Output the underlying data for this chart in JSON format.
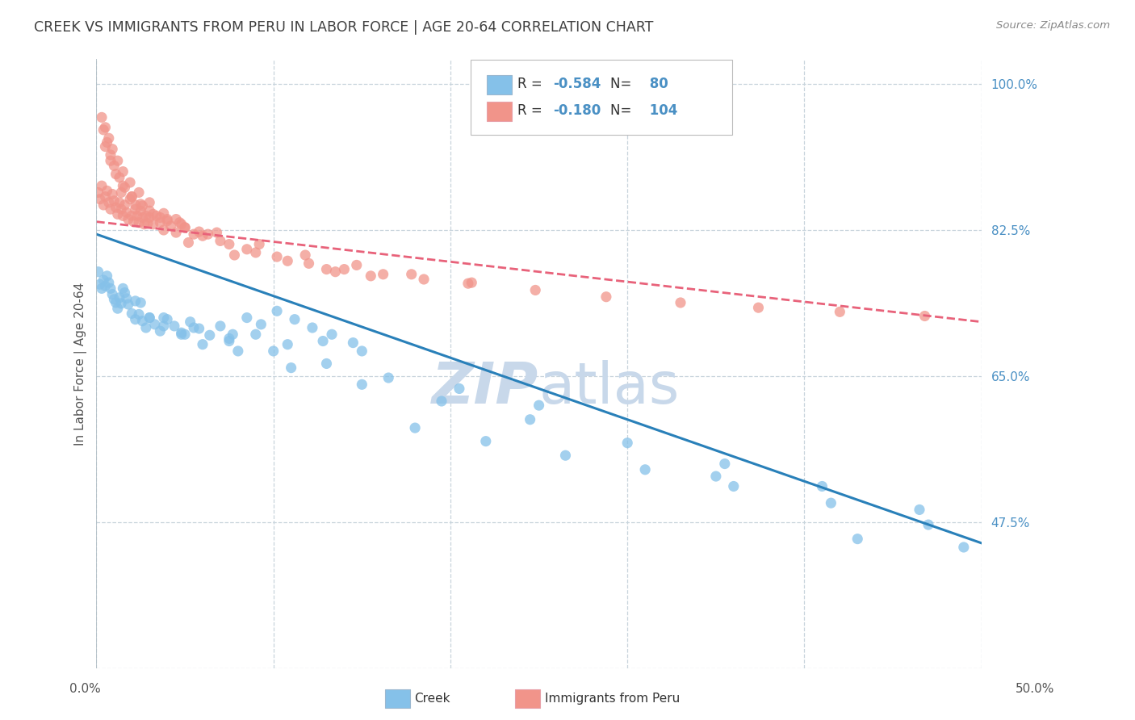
{
  "title": "CREEK VS IMMIGRANTS FROM PERU IN LABOR FORCE | AGE 20-64 CORRELATION CHART",
  "source": "Source: ZipAtlas.com",
  "ylabel": "In Labor Force | Age 20-64",
  "xlim": [
    0.0,
    0.5
  ],
  "ylim": [
    0.3,
    1.03
  ],
  "ytick_labels_right": [
    "100.0%",
    "82.5%",
    "65.0%",
    "47.5%"
  ],
  "yticks_right": [
    1.0,
    0.825,
    0.65,
    0.475
  ],
  "creek_color": "#85C1E9",
  "peru_color": "#F1948A",
  "creek_line_color": "#2980B9",
  "peru_line_color": "#E8627A",
  "watermark_color": "#C8D8EA",
  "R_creek": -0.584,
  "N_creek": 80,
  "R_peru": -0.18,
  "N_peru": 104,
  "legend_label1": "Creek",
  "legend_label2": "Immigrants from Peru",
  "background_color": "#FFFFFF",
  "grid_color": "#C8D4DC",
  "title_color": "#404040",
  "axis_label_color": "#4A90C4",
  "creek_intercept": 0.82,
  "creek_slope": -0.74,
  "peru_intercept": 0.835,
  "peru_slope": -0.24,
  "creek_points_x": [
    0.001,
    0.002,
    0.003,
    0.004,
    0.005,
    0.006,
    0.007,
    0.008,
    0.009,
    0.01,
    0.011,
    0.012,
    0.013,
    0.014,
    0.016,
    0.017,
    0.018,
    0.02,
    0.022,
    0.024,
    0.026,
    0.028,
    0.03,
    0.033,
    0.036,
    0.04,
    0.044,
    0.048,
    0.053,
    0.058,
    0.064,
    0.07,
    0.077,
    0.085,
    0.093,
    0.102,
    0.112,
    0.122,
    0.133,
    0.145,
    0.022,
    0.03,
    0.038,
    0.048,
    0.06,
    0.075,
    0.09,
    0.108,
    0.128,
    0.15,
    0.015,
    0.025,
    0.038,
    0.055,
    0.075,
    0.1,
    0.13,
    0.165,
    0.205,
    0.25,
    0.05,
    0.08,
    0.11,
    0.15,
    0.195,
    0.245,
    0.3,
    0.355,
    0.41,
    0.465,
    0.18,
    0.22,
    0.265,
    0.31,
    0.36,
    0.415,
    0.47,
    0.49,
    0.35,
    0.43
  ],
  "creek_points_y": [
    0.775,
    0.76,
    0.755,
    0.765,
    0.758,
    0.77,
    0.762,
    0.755,
    0.748,
    0.742,
    0.738,
    0.731,
    0.744,
    0.737,
    0.75,
    0.743,
    0.736,
    0.725,
    0.718,
    0.724,
    0.716,
    0.708,
    0.72,
    0.712,
    0.704,
    0.718,
    0.71,
    0.702,
    0.715,
    0.707,
    0.699,
    0.71,
    0.7,
    0.72,
    0.712,
    0.728,
    0.718,
    0.708,
    0.7,
    0.69,
    0.74,
    0.72,
    0.71,
    0.7,
    0.688,
    0.692,
    0.7,
    0.688,
    0.692,
    0.68,
    0.755,
    0.738,
    0.72,
    0.708,
    0.695,
    0.68,
    0.665,
    0.648,
    0.635,
    0.615,
    0.7,
    0.68,
    0.66,
    0.64,
    0.62,
    0.598,
    0.57,
    0.545,
    0.518,
    0.49,
    0.588,
    0.572,
    0.555,
    0.538,
    0.518,
    0.498,
    0.472,
    0.445,
    0.53,
    0.455
  ],
  "peru_points_x": [
    0.001,
    0.002,
    0.003,
    0.004,
    0.005,
    0.006,
    0.007,
    0.008,
    0.009,
    0.01,
    0.011,
    0.012,
    0.013,
    0.014,
    0.015,
    0.016,
    0.017,
    0.018,
    0.019,
    0.02,
    0.021,
    0.022,
    0.023,
    0.024,
    0.025,
    0.026,
    0.027,
    0.028,
    0.029,
    0.03,
    0.032,
    0.034,
    0.036,
    0.038,
    0.04,
    0.042,
    0.045,
    0.048,
    0.05,
    0.055,
    0.004,
    0.006,
    0.008,
    0.01,
    0.013,
    0.016,
    0.02,
    0.025,
    0.03,
    0.036,
    0.005,
    0.008,
    0.011,
    0.015,
    0.02,
    0.026,
    0.032,
    0.04,
    0.05,
    0.063,
    0.003,
    0.005,
    0.007,
    0.009,
    0.012,
    0.015,
    0.019,
    0.024,
    0.03,
    0.038,
    0.047,
    0.058,
    0.07,
    0.085,
    0.102,
    0.12,
    0.14,
    0.162,
    0.185,
    0.21,
    0.06,
    0.075,
    0.09,
    0.108,
    0.13,
    0.155,
    0.022,
    0.045,
    0.068,
    0.092,
    0.118,
    0.147,
    0.178,
    0.212,
    0.248,
    0.288,
    0.33,
    0.374,
    0.42,
    0.468,
    0.014,
    0.135,
    0.052,
    0.078
  ],
  "peru_points_y": [
    0.87,
    0.862,
    0.878,
    0.855,
    0.865,
    0.872,
    0.858,
    0.85,
    0.868,
    0.86,
    0.852,
    0.844,
    0.858,
    0.85,
    0.842,
    0.855,
    0.846,
    0.838,
    0.862,
    0.842,
    0.835,
    0.85,
    0.842,
    0.834,
    0.848,
    0.84,
    0.832,
    0.842,
    0.833,
    0.84,
    0.832,
    0.842,
    0.834,
    0.825,
    0.838,
    0.83,
    0.822,
    0.832,
    0.828,
    0.82,
    0.945,
    0.93,
    0.915,
    0.902,
    0.888,
    0.876,
    0.865,
    0.856,
    0.848,
    0.84,
    0.925,
    0.908,
    0.892,
    0.878,
    0.865,
    0.854,
    0.844,
    0.836,
    0.828,
    0.82,
    0.96,
    0.948,
    0.935,
    0.922,
    0.908,
    0.895,
    0.882,
    0.87,
    0.858,
    0.845,
    0.834,
    0.823,
    0.812,
    0.802,
    0.793,
    0.785,
    0.778,
    0.772,
    0.766,
    0.761,
    0.818,
    0.808,
    0.798,
    0.788,
    0.778,
    0.77,
    0.855,
    0.838,
    0.822,
    0.808,
    0.795,
    0.783,
    0.772,
    0.762,
    0.753,
    0.745,
    0.738,
    0.732,
    0.727,
    0.722,
    0.87,
    0.775,
    0.81,
    0.795
  ]
}
